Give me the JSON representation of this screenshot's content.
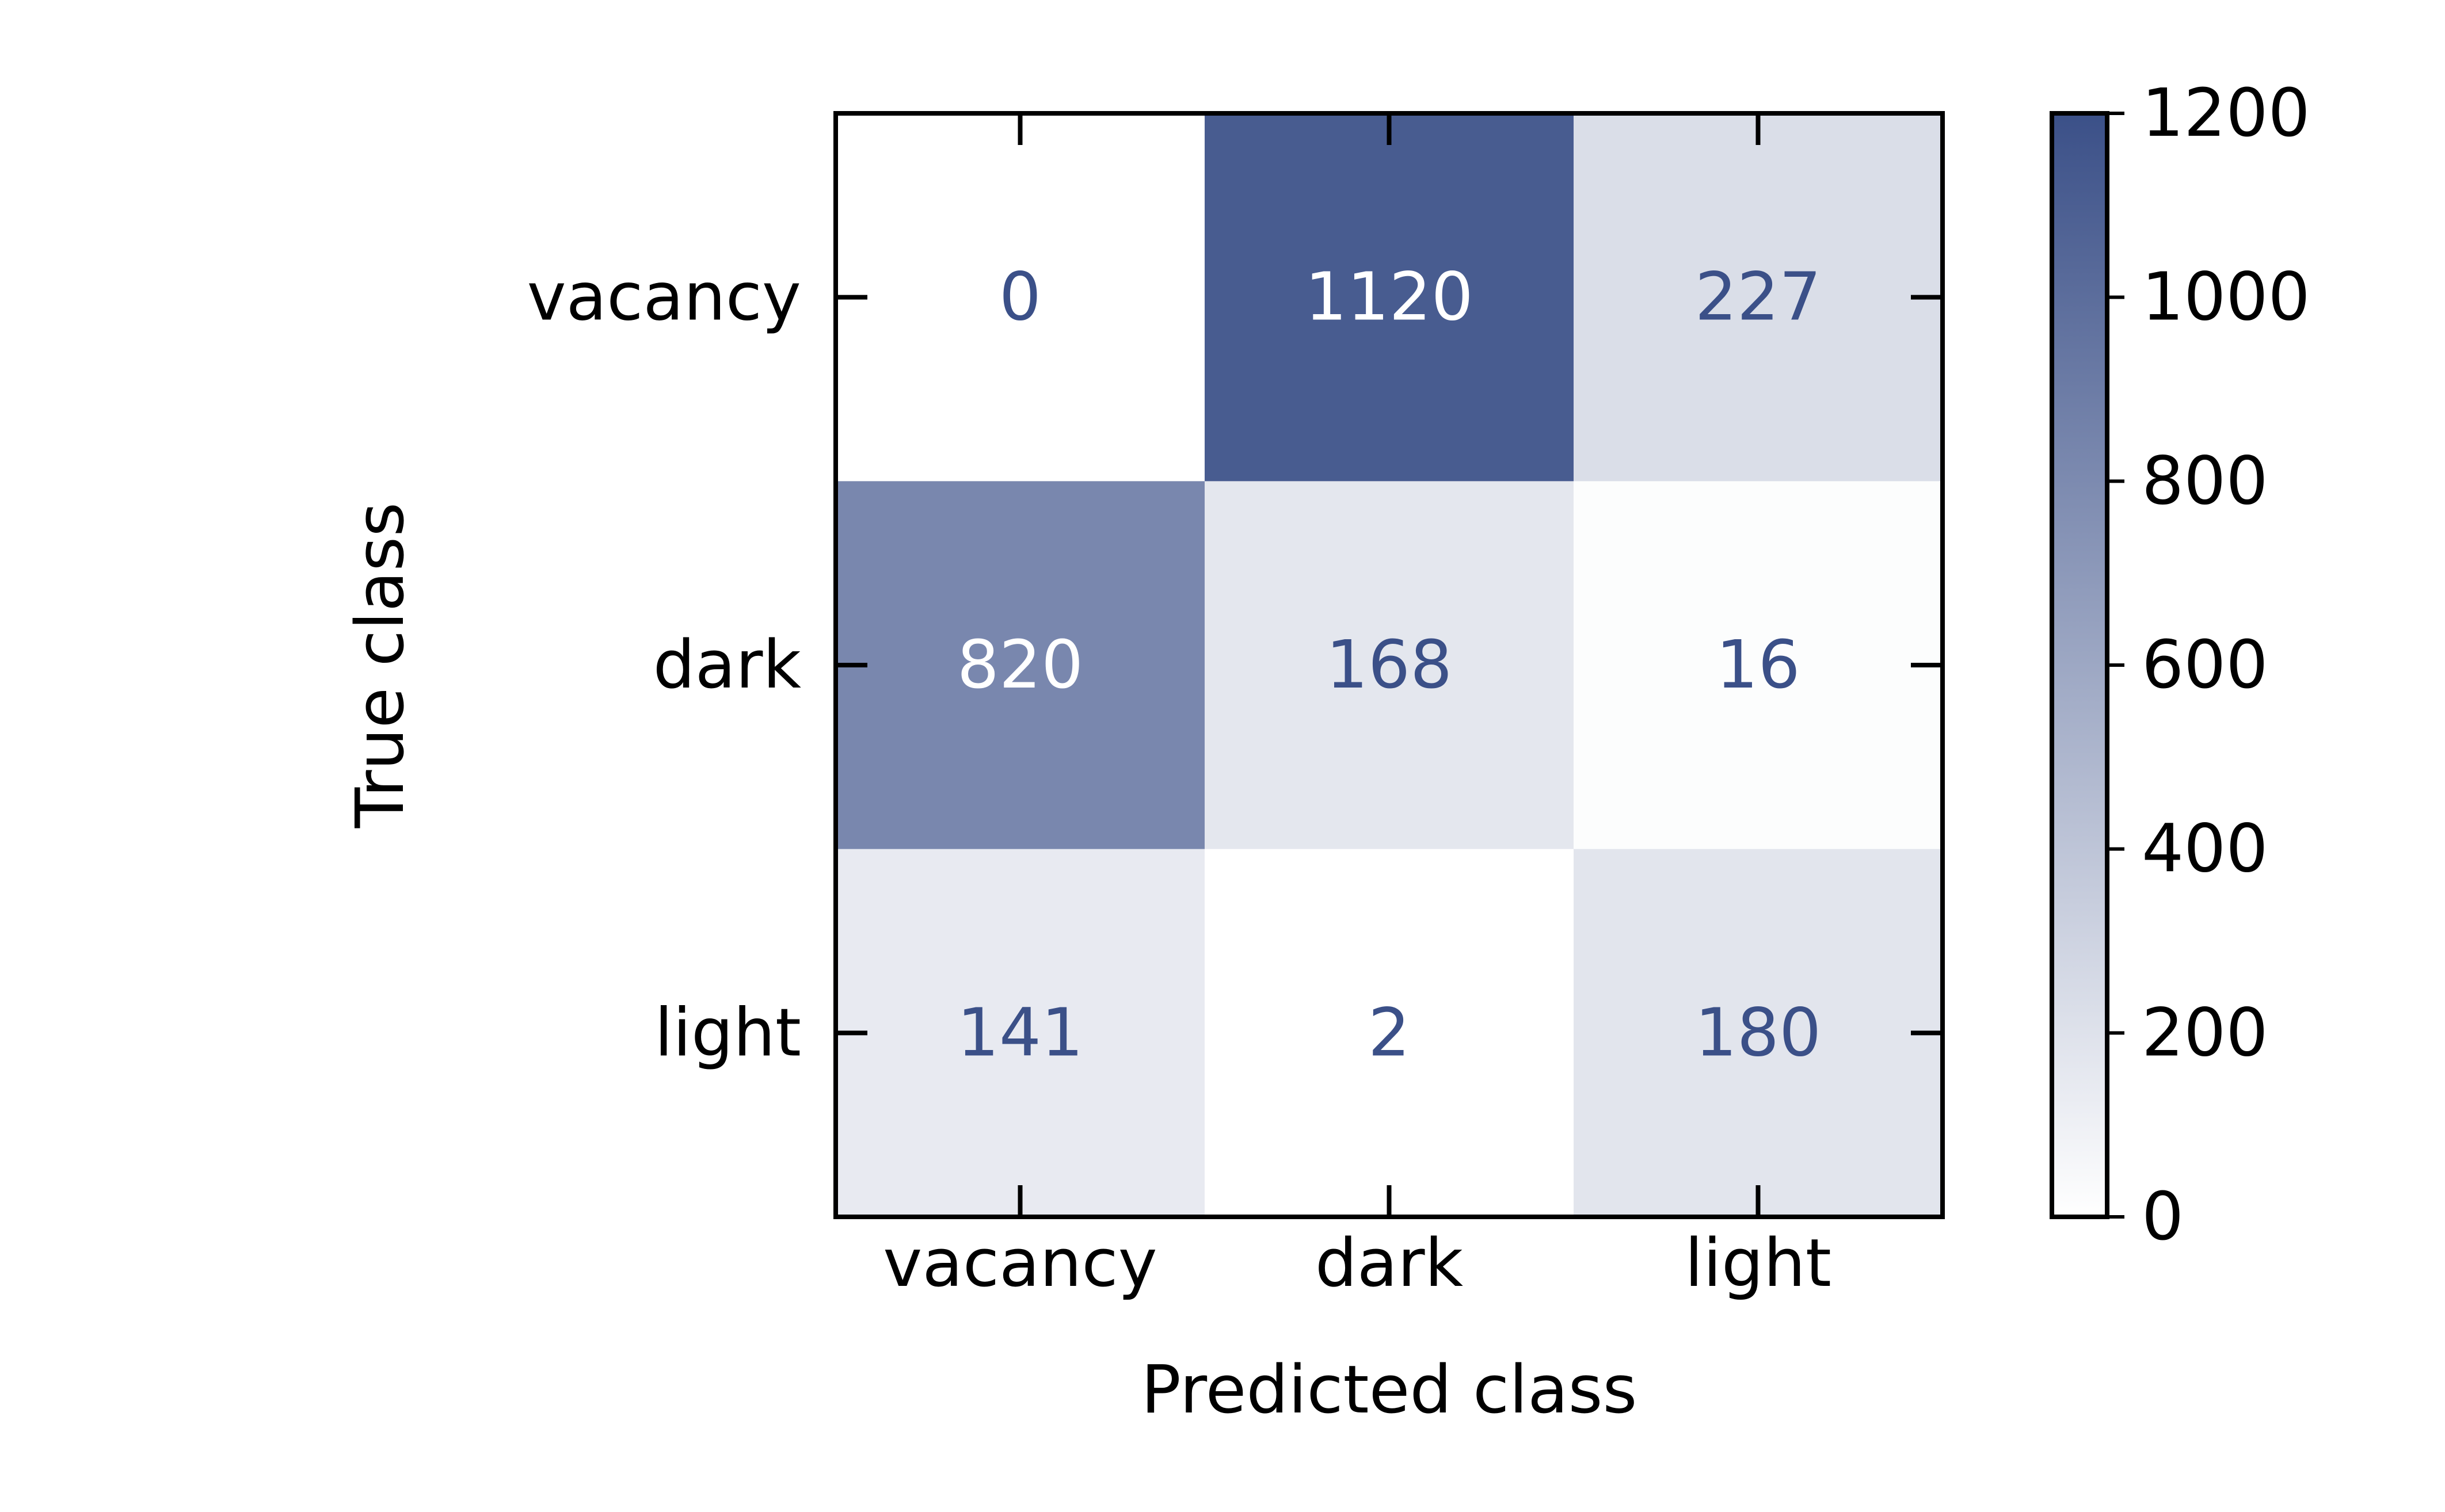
{
  "chart_data": {
    "type": "heatmap",
    "title": "",
    "xlabel": "Predicted class",
    "ylabel": "True class",
    "x_categories": [
      "vacancy",
      "dark",
      "light"
    ],
    "y_categories": [
      "vacancy",
      "dark",
      "light"
    ],
    "values": [
      [
        0,
        1120,
        227
      ],
      [
        820,
        168,
        16
      ],
      [
        141,
        2,
        180
      ]
    ],
    "value_labels": [
      [
        "0",
        "1120",
        "227"
      ],
      [
        "820",
        "168",
        "16"
      ],
      [
        "141",
        "2",
        "180"
      ]
    ],
    "colorbar": {
      "min": 0,
      "max": 1200,
      "ticks": [
        0,
        200,
        400,
        600,
        800,
        1000,
        1200
      ],
      "tick_labels": [
        "0",
        "200",
        "400",
        "600",
        "800",
        "1000",
        "1200"
      ],
      "color_low": "#ffffff",
      "color_high": "#3b5088"
    },
    "label_color_dark": "#3b5088",
    "label_color_light": "#ffffff",
    "grid": false
  }
}
